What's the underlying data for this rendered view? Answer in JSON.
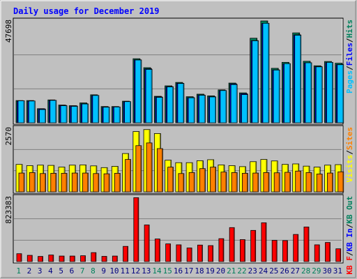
{
  "title": "Daily usage for December 2019",
  "colors": {
    "background": "#c0c0c0",
    "panel": "#c0c0c0",
    "title": "#0000ff",
    "hits": "#00805c",
    "files": "#0000ff",
    "pages": "#00c0ff",
    "visits": "#ffff00",
    "sites": "#ff8000",
    "kbytes": "#ff0000",
    "kb_in": "#0000ff",
    "kb_out": "#00805c",
    "weekend_day": "#00805c",
    "weekday": "#000080"
  },
  "chart_data": [
    {
      "type": "bar",
      "categories": [
        "1",
        "2",
        "3",
        "4",
        "5",
        "6",
        "7",
        "8",
        "9",
        "10",
        "11",
        "12",
        "13",
        "14",
        "15",
        "16",
        "17",
        "18",
        "19",
        "20",
        "21",
        "22",
        "23",
        "24",
        "25",
        "26",
        "27",
        "28",
        "29",
        "30",
        "31"
      ],
      "weekend_days": [
        "1",
        "7",
        "8",
        "14",
        "15",
        "21",
        "22",
        "28",
        "29"
      ],
      "ylim": [
        0,
        47698
      ],
      "max_label": "47698",
      "legend": [
        {
          "label": "Pages",
          "color": "#00c0ff"
        },
        {
          "label": "/",
          "color": "#000000"
        },
        {
          "label": "Files",
          "color": "#0000ff"
        },
        {
          "label": "/",
          "color": "#000000"
        },
        {
          "label": "Hits",
          "color": "#00805c"
        }
      ],
      "series": [
        {
          "name": "Hits",
          "values": [
            10400,
            10400,
            6600,
            10700,
            8300,
            8000,
            9300,
            13100,
            7600,
            7600,
            10100,
            30000,
            25800,
            12400,
            17300,
            18900,
            12200,
            13400,
            12600,
            15400,
            18600,
            14000,
            39600,
            47700,
            25500,
            28300,
            42100,
            28800,
            26700,
            28700,
            27900
          ]
        },
        {
          "name": "Files",
          "values": [
            10100,
            10100,
            6500,
            10400,
            8100,
            7900,
            8900,
            12700,
            7300,
            7400,
            9800,
            29500,
            25300,
            12100,
            16900,
            18500,
            11800,
            13000,
            12200,
            15000,
            18200,
            13600,
            38500,
            46500,
            24800,
            27600,
            41200,
            28100,
            26300,
            28200,
            27300
          ]
        },
        {
          "name": "Pages",
          "values": [
            10300,
            10200,
            6200,
            10500,
            8000,
            7700,
            8800,
            12800,
            7300,
            7400,
            9900,
            29400,
            25000,
            11900,
            16800,
            18400,
            11700,
            12900,
            12100,
            15100,
            17900,
            13200,
            38400,
            46600,
            24700,
            27700,
            41000,
            28100,
            26200,
            28300,
            27200
          ]
        }
      ]
    },
    {
      "type": "bar",
      "categories": [
        "1",
        "2",
        "3",
        "4",
        "5",
        "6",
        "7",
        "8",
        "9",
        "10",
        "11",
        "12",
        "13",
        "14",
        "15",
        "16",
        "17",
        "18",
        "19",
        "20",
        "21",
        "22",
        "23",
        "24",
        "25",
        "26",
        "27",
        "28",
        "29",
        "30",
        "31"
      ],
      "ylim": [
        0,
        2570
      ],
      "max_label": "2570",
      "legend": [
        {
          "label": "Visits",
          "color": "#ffff00"
        },
        {
          "label": "/",
          "color": "#000000"
        },
        {
          "label": "Sites",
          "color": "#ff8000"
        }
      ],
      "series": [
        {
          "name": "Visits",
          "values": [
            1110,
            1060,
            1080,
            1070,
            1000,
            1080,
            1090,
            1050,
            980,
            1030,
            1550,
            2440,
            2520,
            2360,
            1280,
            1180,
            1180,
            1260,
            1300,
            1090,
            1060,
            1020,
            1220,
            1310,
            1250,
            1110,
            1130,
            1040,
            1000,
            1080,
            1100
          ]
        },
        {
          "name": "Sites",
          "values": [
            760,
            780,
            740,
            750,
            750,
            760,
            760,
            740,
            730,
            750,
            1310,
            1870,
            1980,
            1750,
            1000,
            740,
            780,
            940,
            1000,
            800,
            780,
            750,
            760,
            780,
            770,
            790,
            840,
            780,
            720,
            760,
            810
          ]
        }
      ]
    },
    {
      "type": "bar",
      "categories": [
        "1",
        "2",
        "3",
        "4",
        "5",
        "6",
        "7",
        "8",
        "9",
        "10",
        "11",
        "12",
        "13",
        "14",
        "15",
        "16",
        "17",
        "18",
        "19",
        "20",
        "21",
        "22",
        "23",
        "24",
        "25",
        "26",
        "27",
        "28",
        "29",
        "30",
        "31"
      ],
      "ylim": [
        0,
        823383
      ],
      "max_label": "823383",
      "legend": [
        {
          "label": "KB F",
          "color": "#ff0000"
        },
        {
          "label": "/",
          "color": "#000000"
        },
        {
          "label": "KB In",
          "color": "#0000ff"
        },
        {
          "label": "/",
          "color": "#000000"
        },
        {
          "label": "KB Out",
          "color": "#00805c"
        }
      ],
      "series": [
        {
          "name": "KB F",
          "values": [
            101000,
            80000,
            66000,
            84000,
            71000,
            71000,
            75000,
            115000,
            67000,
            71000,
            195000,
            820000,
            470000,
            290000,
            227000,
            215000,
            175000,
            212000,
            205000,
            294000,
            436000,
            282000,
            400000,
            498000,
            272000,
            269000,
            348000,
            444000,
            215000,
            245000,
            164000
          ]
        }
      ]
    }
  ]
}
